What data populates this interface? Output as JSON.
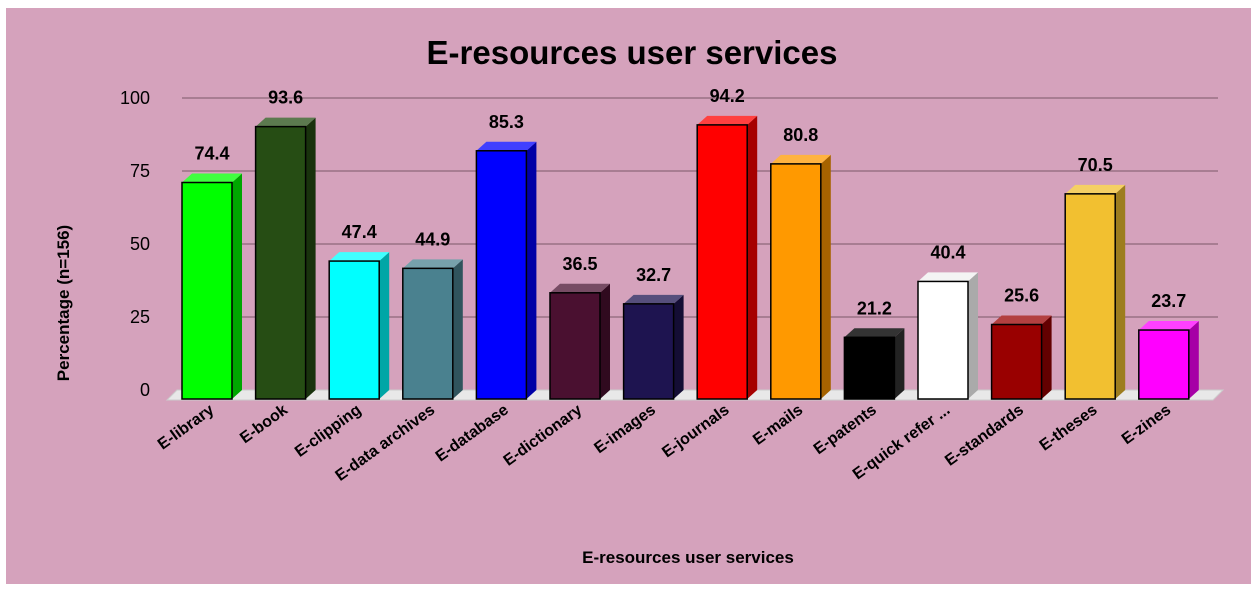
{
  "chart_data": {
    "type": "bar",
    "title": "E-resources user services",
    "xlabel": "E-resources user services",
    "ylabel": "Percentage (n=156)",
    "ylim": [
      0,
      100
    ],
    "yticks": [
      "0",
      "25",
      "50",
      "75",
      "100"
    ],
    "grid": true,
    "legend": "none",
    "style": "3d",
    "categories": [
      "E-library",
      "E-book",
      "E-clipping",
      "E-data archives",
      "E-database",
      "E-dictionary",
      "E-images",
      "E-journals",
      "E-mails",
      "E-patents",
      "E-quick refer ...",
      "E-standards",
      "E-theses",
      "E-zines"
    ],
    "values": [
      74.4,
      93.6,
      47.4,
      44.9,
      85.3,
      36.5,
      32.7,
      94.2,
      80.8,
      21.2,
      40.4,
      25.6,
      70.5,
      23.7
    ],
    "value_labels": [
      "74.4",
      "93.6",
      "47.4",
      "44.9",
      "85.3",
      "36.5",
      "32.7",
      "94.2",
      "80.8",
      "21.2",
      "40.4",
      "25.6",
      "70.5",
      "23.7"
    ],
    "colors": [
      "#00ff00",
      "#264d14",
      "#00ffff",
      "#4a818f",
      "#0000ff",
      "#4a1030",
      "#1e1450",
      "#ff0000",
      "#ff9900",
      "#000000",
      "#ffffff",
      "#990000",
      "#f2c030",
      "#ff00ff"
    ],
    "background": "#d5a2bc"
  }
}
